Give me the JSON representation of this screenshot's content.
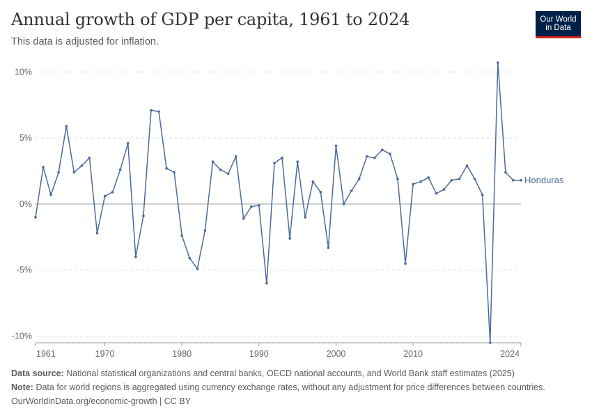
{
  "header": {
    "title": "Annual growth of GDP per capita, 1961 to 2024",
    "subtitle": "This data is adjusted for inflation.",
    "logo_line1": "Our World",
    "logo_line2": "in Data"
  },
  "footer": {
    "source_label": "Data source:",
    "source_text": "National statistical organizations and central banks, OECD national accounts, and World Bank staff estimates (2025)",
    "note_label": "Note:",
    "note_text": "Data for world regions is aggregated using currency exchange rates, without any adjustment for price differences between countries.",
    "credit_link": "OurWorldinData.org/economic-growth",
    "credit_sep": " | ",
    "credit_license": "CC BY"
  },
  "colors": {
    "series": "#4c6a9c",
    "grid": "#dddddd",
    "zero": "#999999"
  },
  "chart_data": {
    "type": "line",
    "xlim": [
      1961,
      2024
    ],
    "ylim": [
      -10.5,
      10.7
    ],
    "x_ticks": [
      1961,
      1970,
      1980,
      1990,
      2000,
      2010,
      2024
    ],
    "y_ticks": [
      {
        "value": 10,
        "label": "10%"
      },
      {
        "value": 5,
        "label": "5%"
      },
      {
        "value": 0,
        "label": "0%"
      },
      {
        "value": -5,
        "label": "-5%"
      },
      {
        "value": -10,
        "label": "-10%"
      }
    ],
    "series": [
      {
        "name": "Honduras",
        "x": [
          1961,
          1962,
          1963,
          1964,
          1965,
          1966,
          1967,
          1968,
          1969,
          1970,
          1971,
          1972,
          1973,
          1974,
          1975,
          1976,
          1977,
          1978,
          1979,
          1980,
          1981,
          1982,
          1983,
          1984,
          1985,
          1986,
          1987,
          1988,
          1989,
          1990,
          1991,
          1992,
          1993,
          1994,
          1995,
          1996,
          1997,
          1998,
          1999,
          2000,
          2001,
          2002,
          2003,
          2004,
          2005,
          2006,
          2007,
          2008,
          2009,
          2010,
          2011,
          2012,
          2013,
          2014,
          2015,
          2016,
          2017,
          2018,
          2019,
          2020,
          2021,
          2022,
          2023,
          2024
        ],
        "values": [
          -1.0,
          2.8,
          0.7,
          2.4,
          5.9,
          2.4,
          2.9,
          3.5,
          -2.2,
          0.6,
          0.9,
          2.6,
          4.6,
          -4.0,
          -0.9,
          7.1,
          7.0,
          2.7,
          2.4,
          -2.4,
          -4.1,
          -4.9,
          -2.0,
          3.2,
          2.6,
          2.3,
          3.6,
          -1.1,
          -0.2,
          -0.1,
          -6.0,
          3.1,
          3.5,
          -2.6,
          3.2,
          -1.0,
          1.7,
          0.9,
          -3.3,
          4.4,
          0.0,
          1.0,
          1.9,
          3.6,
          3.5,
          4.1,
          3.8,
          1.9,
          -4.5,
          1.5,
          1.7,
          2.0,
          0.8,
          1.1,
          1.8,
          1.9,
          2.9,
          1.9,
          0.7,
          -10.5,
          10.7,
          2.4,
          1.8,
          1.8
        ]
      }
    ]
  }
}
